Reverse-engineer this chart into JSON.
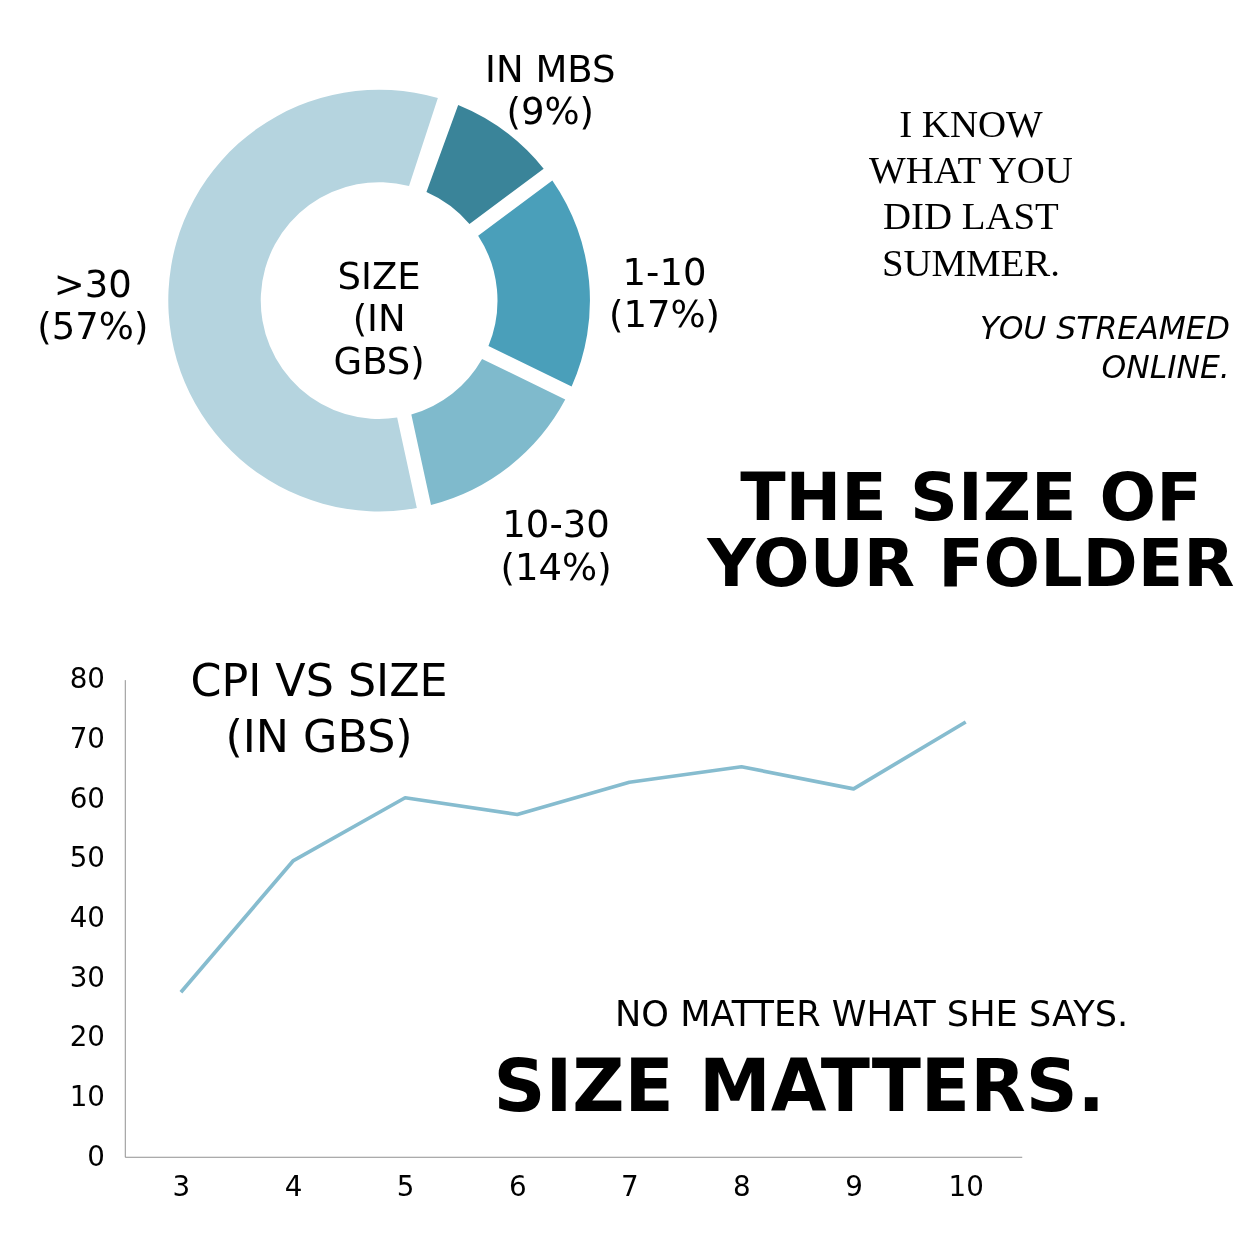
{
  "chart_data": [
    {
      "type": "donut",
      "title": "SIZE (IN GBS)",
      "categories": [
        "IN MBS",
        "1-10",
        "10-30",
        ">30"
      ],
      "values": [
        9,
        17,
        14,
        57
      ],
      "value_labels": [
        "(9%)",
        "(17%)",
        "(14%)",
        "(57%)"
      ],
      "colors": [
        "#3a8499",
        "#4a9fba",
        "#7fbacc",
        "#b5d4df"
      ],
      "annotations": [
        "I KNOW WHAT YOU DID LAST SUMMER.",
        "YOU STREAMED ONLINE.",
        "THE SIZE OF YOUR FOLDER"
      ]
    },
    {
      "type": "line",
      "title": "CPI VS SIZE (IN GBS)",
      "x": [
        3,
        4,
        5,
        6,
        7,
        8,
        9,
        10
      ],
      "series": [
        {
          "color": "#86bccf",
          "values": [
            27.6,
            49.6,
            60.2,
            57.4,
            62.8,
            65.4,
            61.7,
            72.9
          ]
        }
      ],
      "xlim": [
        2.5,
        10.5
      ],
      "ylim": [
        0,
        80
      ],
      "xticks": [
        3,
        4,
        5,
        6,
        7,
        8,
        9,
        10
      ],
      "yticks": [
        0,
        10,
        20,
        30,
        40,
        50,
        60,
        70,
        80
      ],
      "grid": false,
      "annotations": [
        "NO MATTER WHAT SHE SAYS.",
        "SIZE MATTERS."
      ]
    }
  ]
}
